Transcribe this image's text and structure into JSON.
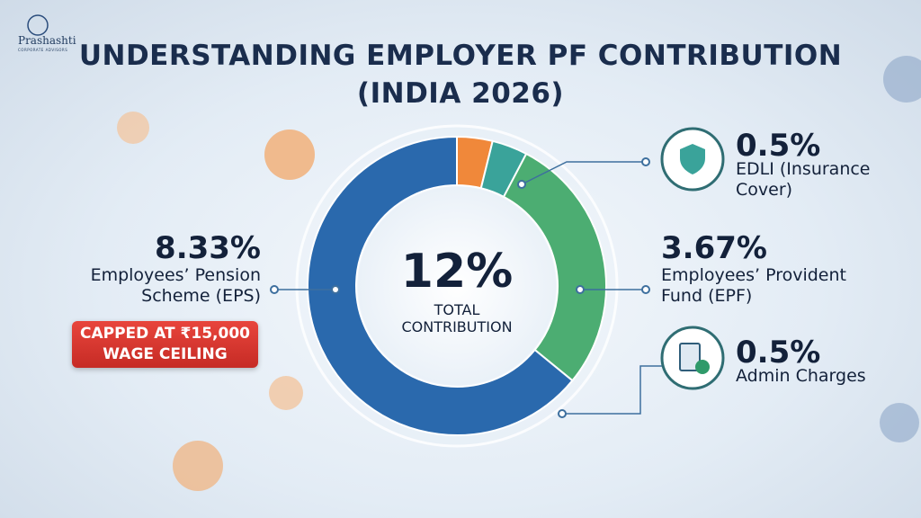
{
  "logo": {
    "name": "Prashashti",
    "tagline": "CORPORATE ADVISORS"
  },
  "chart_data": {
    "type": "donut",
    "title": [
      "UNDERSTANDING EMPLOYER PF CONTRIBUTION",
      "(INDIA 2026)"
    ],
    "center_label": "12%",
    "center_caption": "TOTAL CONTRIBUTION",
    "note": "CAPPED AT ₹15,000 WAGE CEILING",
    "categories": [
      "Admin Charges",
      "EDLI (Insurance Cover)",
      "Employees’ Provident Fund (EPF)",
      "Employees’ Pension Scheme (EPS)"
    ],
    "values": [
      0.5,
      0.5,
      3.67,
      8.33
    ],
    "value_labels": [
      "0.5%",
      "0.5%",
      "3.67%",
      "8.33%"
    ],
    "colors": [
      "#f0883a",
      "#3aa39a",
      "#4cad72",
      "#2a69ad"
    ]
  }
}
